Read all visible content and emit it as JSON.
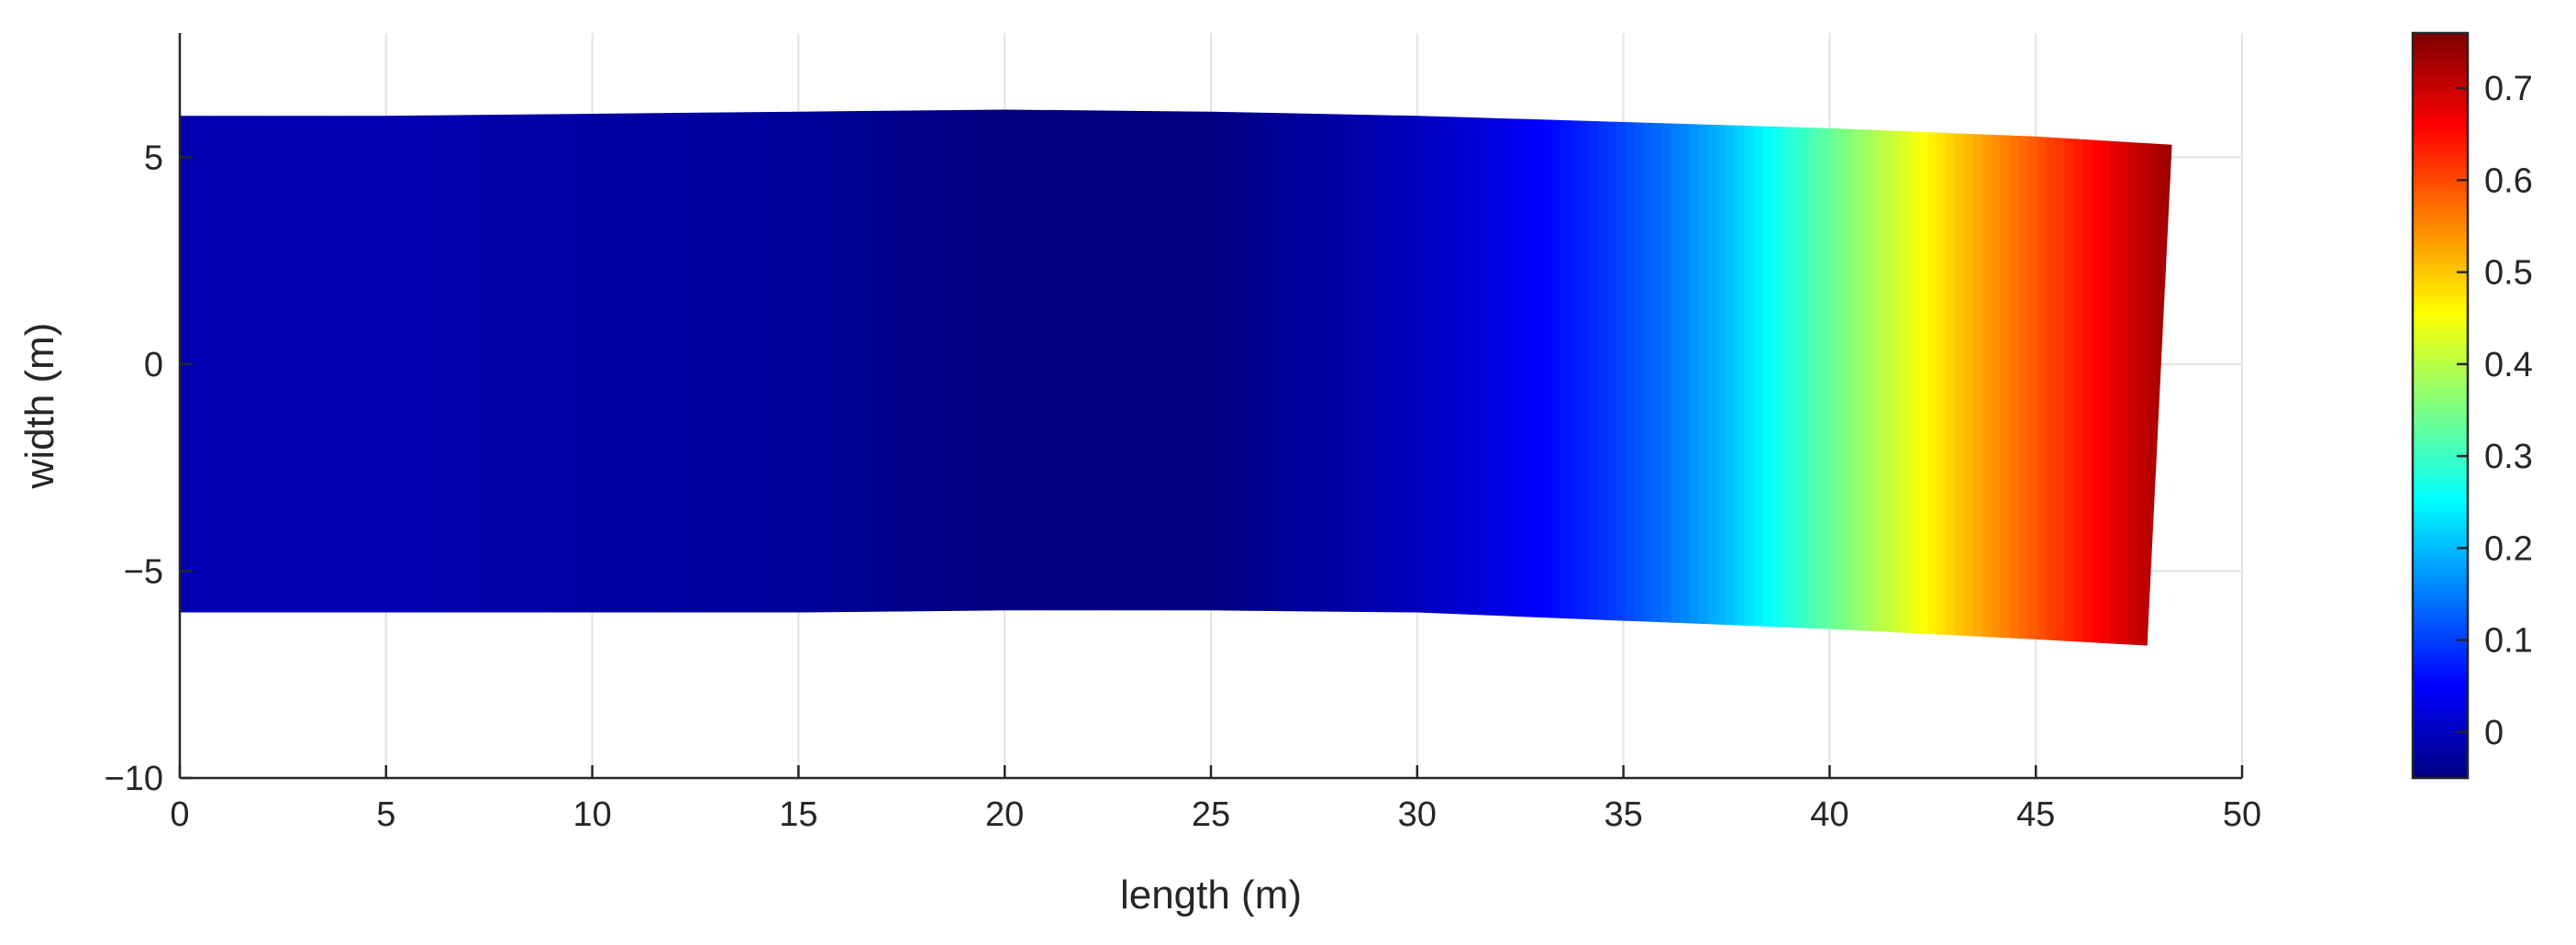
{
  "chart_data": {
    "type": "heatmap",
    "title": "",
    "xlabel": "length (m)",
    "ylabel": "width (m)",
    "xlim": [
      0,
      50
    ],
    "ylim": [
      -10,
      8
    ],
    "xticks": [
      0,
      5,
      10,
      15,
      20,
      25,
      30,
      35,
      40,
      45,
      50
    ],
    "yticks": [
      -10,
      -5,
      0,
      5
    ],
    "grid": true,
    "colormap": "jet",
    "colorbar": {
      "range": [
        -0.05,
        0.76
      ],
      "ticks": [
        0,
        0.1,
        0.2,
        0.3,
        0.4,
        0.5,
        0.6,
        0.7
      ],
      "position": "right"
    },
    "shape_outline": {
      "top": [
        [
          0,
          6.0
        ],
        [
          5,
          6.0
        ],
        [
          10,
          6.05
        ],
        [
          15,
          6.1
        ],
        [
          20,
          6.15
        ],
        [
          25,
          6.1
        ],
        [
          30,
          6.0
        ],
        [
          35,
          5.85
        ],
        [
          40,
          5.7
        ],
        [
          45,
          5.5
        ],
        [
          48.3,
          5.3
        ]
      ],
      "bottom": [
        [
          0,
          -6.0
        ],
        [
          5,
          -6.0
        ],
        [
          10,
          -6.0
        ],
        [
          15,
          -6.0
        ],
        [
          20,
          -5.95
        ],
        [
          25,
          -5.95
        ],
        [
          30,
          -6.0
        ],
        [
          35,
          -6.2
        ],
        [
          40,
          -6.4
        ],
        [
          45,
          -6.65
        ],
        [
          47.7,
          -6.8
        ]
      ]
    },
    "field_profile": {
      "x": [
        0,
        6,
        8,
        13.5,
        16.5,
        18.5,
        20,
        22,
        24,
        25.5,
        27,
        28.5,
        30,
        31.5,
        33,
        34.5,
        36,
        37.5,
        39,
        40.5,
        42,
        43.5,
        45,
        46.5,
        48.3
      ],
      "value": [
        -0.01,
        -0.01,
        -0.018,
        -0.025,
        -0.035,
        -0.045,
        -0.055,
        -0.06,
        -0.055,
        -0.045,
        -0.03,
        -0.015,
        0.0,
        0.02,
        0.05,
        0.09,
        0.14,
        0.2,
        0.28,
        0.36,
        0.44,
        0.52,
        0.59,
        0.66,
        0.74
      ]
    }
  }
}
